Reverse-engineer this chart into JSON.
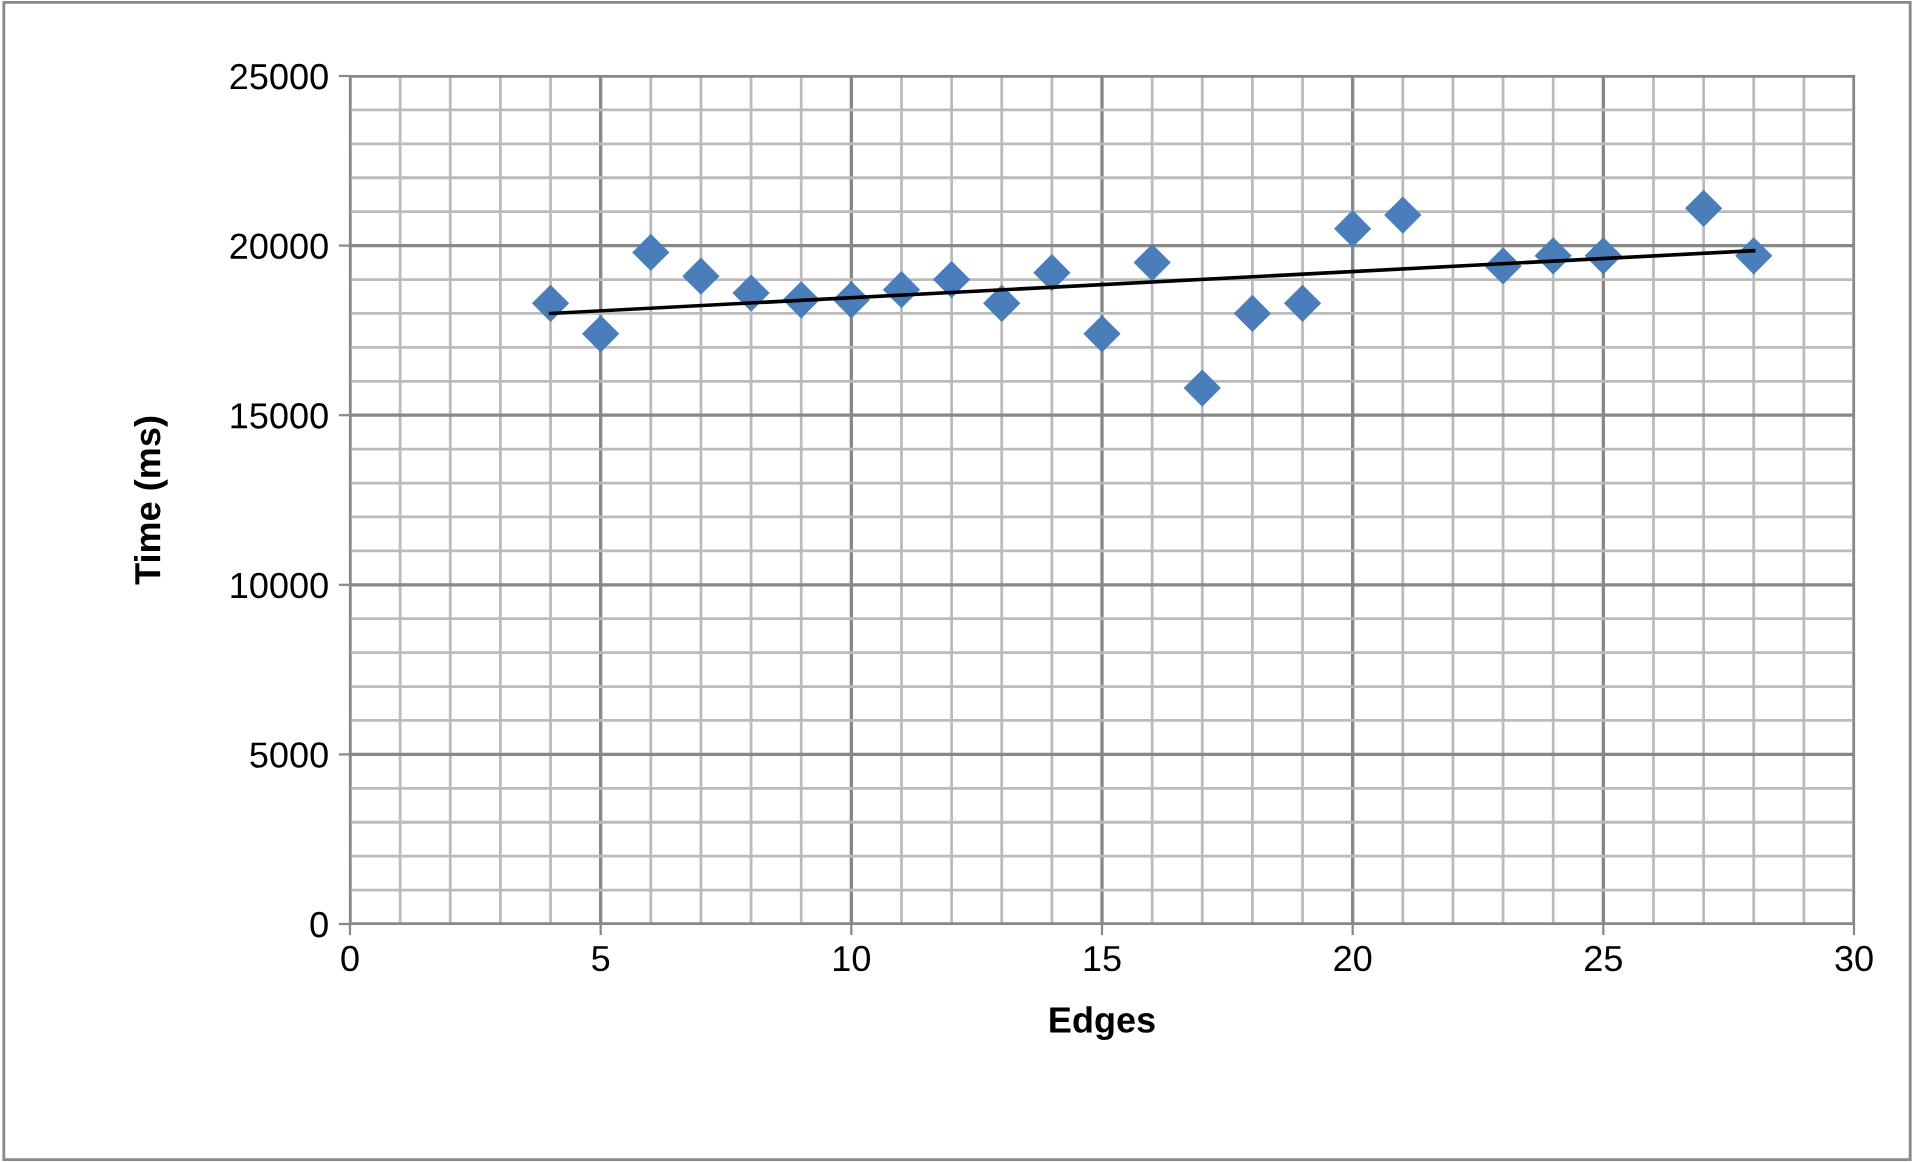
{
  "chart_data": {
    "type": "scatter",
    "xlabel": "Edges",
    "ylabel": "Time (ms)",
    "xlim": [
      0,
      30
    ],
    "xticks": [
      0,
      5,
      10,
      15,
      20,
      25,
      30
    ],
    "ylim": [
      0,
      25000
    ],
    "yticks": [
      0,
      5000,
      10000,
      15000,
      20000,
      25000
    ],
    "grid": true,
    "series": [
      {
        "marker": "diamond",
        "color": "#4a7ebb",
        "x": [
          4,
          5,
          6,
          7,
          8,
          9,
          10,
          11,
          12,
          13,
          14,
          15,
          16,
          17,
          18,
          19,
          20,
          21,
          23,
          24,
          25,
          27,
          28
        ],
        "values": [
          18300,
          17400,
          19800,
          19100,
          18600,
          18400,
          18400,
          18700,
          19000,
          18300,
          19200,
          17400,
          19500,
          15800,
          18000,
          18300,
          20500,
          20900,
          19400,
          19700,
          19700,
          21100,
          19700
        ]
      },
      {
        "type": "line",
        "marker": "none",
        "color": "#000000",
        "x": [
          4,
          28
        ],
        "values": [
          18000,
          19850
        ]
      }
    ]
  }
}
